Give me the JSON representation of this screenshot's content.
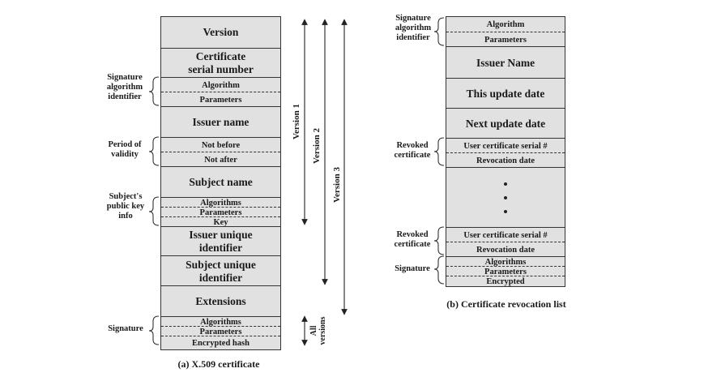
{
  "x509": {
    "caption": "(a) X.509 certificate",
    "fields": {
      "version": "Version",
      "serial_1": "Certificate",
      "serial_2": "serial number",
      "sig_algorithm": "Algorithm",
      "sig_parameters": "Parameters",
      "issuer_name": "Issuer name",
      "not_before": "Not before",
      "not_after": "Not after",
      "subject_name": "Subject name",
      "pk_algorithms": "Algorithms",
      "pk_parameters": "Parameters",
      "pk_key": "Key",
      "issuer_uid_1": "Issuer unique",
      "issuer_uid_2": "identifier",
      "subject_uid_1": "Subject unique",
      "subject_uid_2": "identifier",
      "extensions": "Extensions",
      "s_algorithms": "Algorithms",
      "s_parameters": "Parameters",
      "s_encrypted": "Encrypted hash"
    },
    "labels": {
      "sig_alg_id": [
        "Signature",
        "algorithm",
        "identifier"
      ],
      "validity": [
        "Period of",
        "validity"
      ],
      "pk_info": [
        "Subject's",
        "public key",
        "info"
      ],
      "signature": [
        "Signature"
      ]
    },
    "versions": {
      "v1": "Version 1",
      "v2": "Version 2",
      "v3": "Version 3",
      "all_1": "All",
      "all_2": "versions"
    }
  },
  "crl": {
    "caption": "(b) Certificate revocation list",
    "fields": {
      "algorithm": "Algorithm",
      "parameters": "Parameters",
      "issuer_name": "Issuer Name",
      "this_update": "This update date",
      "next_update": "Next update date",
      "serial_1": "User certificate serial #",
      "revocation_1": "Revocation date",
      "serial_2": "User certificate serial #",
      "revocation_2": "Revocation date",
      "s_algorithms": "Algorithms",
      "s_parameters": "Parameters",
      "s_encrypted": "Encrypted"
    },
    "labels": {
      "sig_alg_id": [
        "Signature",
        "algorithm",
        "identifier"
      ],
      "revoked_1": [
        "Revoked",
        "certificate"
      ],
      "revoked_2": [
        "Revoked",
        "certificate"
      ],
      "signature": [
        "Signature"
      ]
    }
  }
}
